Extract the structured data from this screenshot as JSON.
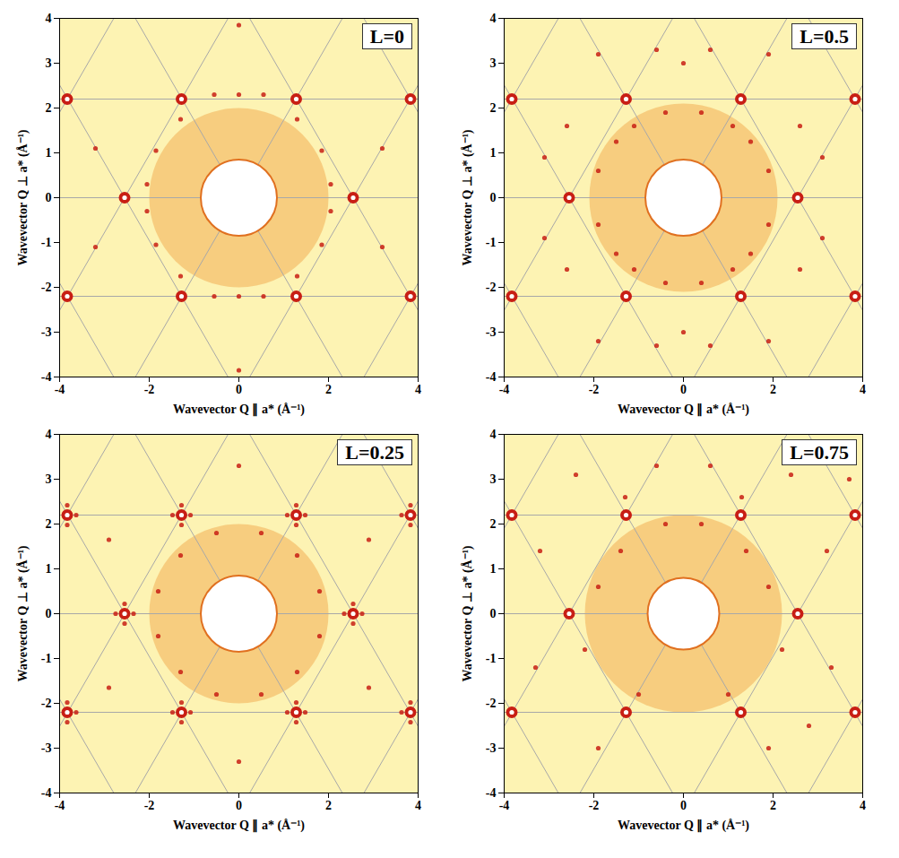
{
  "chart_data": [
    {
      "type": "scatter",
      "title": "L=0",
      "x_label": "Wavevector Q ∥ a* (Å⁻¹)",
      "y_label": "Wavevector Q ⊥ a* (Å⁻¹)",
      "xlim": [
        -4,
        4
      ],
      "ylim": [
        -4,
        4
      ],
      "xticks": [
        -4,
        -2,
        0,
        2,
        4
      ],
      "yticks": [
        -4,
        -3,
        -2,
        -1,
        0,
        1,
        2,
        3,
        4
      ],
      "color": "#c81e14",
      "diffuse_ring": {
        "inner_radius": 0.85,
        "outer_radius": 2.0
      },
      "lattice_lines": [
        [
          -4.4,
          -2.2,
          4.4,
          -2.2
        ],
        [
          -4.4,
          0,
          4.4,
          0
        ],
        [
          -4.4,
          2.2,
          4.4,
          2.2
        ],
        [
          -7.64,
          -4.4,
          -2.56,
          4.4
        ],
        [
          -5.09,
          -4.4,
          -0.01,
          4.4
        ],
        [
          -2.54,
          -4.4,
          2.54,
          4.4
        ],
        [
          0.01,
          -4.4,
          5.09,
          4.4
        ],
        [
          2.56,
          -4.4,
          7.64,
          4.4
        ],
        [
          -2.56,
          -4.4,
          -7.64,
          4.4
        ],
        [
          -0.01,
          -4.4,
          -5.09,
          4.4
        ],
        [
          2.54,
          -4.4,
          -2.54,
          4.4
        ],
        [
          5.09,
          -4.4,
          0.01,
          4.4
        ],
        [
          7.64,
          -4.4,
          2.56,
          4.4
        ]
      ],
      "bragg_peaks": [
        [
          2.55,
          0
        ],
        [
          -2.55,
          0
        ],
        [
          1.28,
          2.2
        ],
        [
          -1.28,
          2.2
        ],
        [
          1.28,
          -2.2
        ],
        [
          -1.28,
          -2.2
        ],
        [
          3.83,
          2.2
        ],
        [
          -3.83,
          2.2
        ],
        [
          3.83,
          -2.2
        ],
        [
          -3.83,
          -2.2
        ]
      ],
      "satellites": [
        [
          0,
          2.3
        ],
        [
          -0.55,
          2.3
        ],
        [
          0.55,
          2.3
        ],
        [
          0,
          -2.2
        ],
        [
          -0.55,
          -2.2
        ],
        [
          0.55,
          -2.2
        ],
        [
          -1.85,
          1.05
        ],
        [
          1.85,
          1.05
        ],
        [
          -1.85,
          -1.05
        ],
        [
          1.85,
          -1.05
        ],
        [
          -1.3,
          1.75
        ],
        [
          1.3,
          1.75
        ],
        [
          -1.3,
          -1.75
        ],
        [
          1.3,
          -1.75
        ],
        [
          -2.05,
          0.3
        ],
        [
          2.05,
          0.3
        ],
        [
          -2.05,
          -0.3
        ],
        [
          2.05,
          -0.3
        ],
        [
          0,
          3.85
        ],
        [
          0,
          -3.85
        ],
        [
          -3.2,
          1.1
        ],
        [
          3.2,
          1.1
        ],
        [
          -3.2,
          -1.1
        ],
        [
          3.2,
          -1.1
        ]
      ]
    },
    {
      "type": "scatter",
      "title": "L=0.5",
      "x_label": "Wavevector Q ∥ a* (Å⁻¹)",
      "y_label": "Wavevector Q ⊥ a* (Å⁻¹)",
      "xlim": [
        -4,
        4
      ],
      "ylim": [
        -4,
        4
      ],
      "xticks": [
        -4,
        -2,
        0,
        2,
        4
      ],
      "yticks": [
        -4,
        -3,
        -2,
        -1,
        0,
        1,
        2,
        3,
        4
      ],
      "color": "#c81e14",
      "diffuse_ring": {
        "inner_radius": 0.85,
        "outer_radius": 2.1
      },
      "lattice_lines": [
        [
          -4.4,
          -2.2,
          4.4,
          -2.2
        ],
        [
          -4.4,
          0,
          4.4,
          0
        ],
        [
          -4.4,
          2.2,
          4.4,
          2.2
        ],
        [
          -7.64,
          -4.4,
          -2.56,
          4.4
        ],
        [
          -5.09,
          -4.4,
          -0.01,
          4.4
        ],
        [
          -2.54,
          -4.4,
          2.54,
          4.4
        ],
        [
          0.01,
          -4.4,
          5.09,
          4.4
        ],
        [
          2.56,
          -4.4,
          7.64,
          4.4
        ],
        [
          -2.56,
          -4.4,
          -7.64,
          4.4
        ],
        [
          -0.01,
          -4.4,
          -5.09,
          4.4
        ],
        [
          2.54,
          -4.4,
          -2.54,
          4.4
        ],
        [
          5.09,
          -4.4,
          0.01,
          4.4
        ],
        [
          7.64,
          -4.4,
          2.56,
          4.4
        ]
      ],
      "bragg_peaks": [
        [
          2.55,
          0
        ],
        [
          -2.55,
          0
        ],
        [
          1.28,
          2.2
        ],
        [
          -1.28,
          2.2
        ],
        [
          1.28,
          -2.2
        ],
        [
          -1.28,
          -2.2
        ],
        [
          3.83,
          2.2
        ],
        [
          -3.83,
          2.2
        ],
        [
          3.83,
          -2.2
        ],
        [
          -3.83,
          -2.2
        ]
      ],
      "satellites": [
        [
          -0.4,
          1.9
        ],
        [
          0.4,
          1.9
        ],
        [
          -0.4,
          -1.9
        ],
        [
          0.4,
          -1.9
        ],
        [
          -1.5,
          1.25
        ],
        [
          1.5,
          1.25
        ],
        [
          -1.5,
          -1.25
        ],
        [
          1.5,
          -1.25
        ],
        [
          -1.9,
          0.6
        ],
        [
          1.9,
          0.6
        ],
        [
          -1.9,
          -0.6
        ],
        [
          1.9,
          -0.6
        ],
        [
          -1.1,
          1.6
        ],
        [
          1.1,
          1.6
        ],
        [
          -1.1,
          -1.6
        ],
        [
          1.1,
          -1.6
        ],
        [
          0,
          3.0
        ],
        [
          0,
          -3.0
        ],
        [
          -0.6,
          3.3
        ],
        [
          0.6,
          3.3
        ],
        [
          -0.6,
          -3.3
        ],
        [
          0.6,
          -3.3
        ],
        [
          -2.6,
          1.6
        ],
        [
          2.6,
          1.6
        ],
        [
          -2.6,
          -1.6
        ],
        [
          2.6,
          -1.6
        ],
        [
          -3.1,
          0.9
        ],
        [
          3.1,
          0.9
        ],
        [
          -3.1,
          -0.9
        ],
        [
          3.1,
          -0.9
        ],
        [
          -1.9,
          3.2
        ],
        [
          1.9,
          3.2
        ],
        [
          -1.9,
          -3.2
        ],
        [
          1.9,
          -3.2
        ]
      ]
    },
    {
      "type": "scatter",
      "title": "L=0.25",
      "x_label": "Wavevector Q ∥ a* (Å⁻¹)",
      "y_label": "Wavevector Q ⊥ a* (Å⁻¹)",
      "xlim": [
        -4,
        4
      ],
      "ylim": [
        -4,
        4
      ],
      "xticks": [
        -4,
        -2,
        0,
        2,
        4
      ],
      "yticks": [
        -4,
        -3,
        -2,
        -1,
        0,
        1,
        2,
        3,
        4
      ],
      "color": "#c81e14",
      "diffuse_ring": {
        "inner_radius": 0.85,
        "outer_radius": 2.0
      },
      "lattice_lines": [
        [
          -4.4,
          -2.2,
          4.4,
          -2.2
        ],
        [
          -4.4,
          0,
          4.4,
          0
        ],
        [
          -4.4,
          2.2,
          4.4,
          2.2
        ],
        [
          -7.64,
          -4.4,
          -2.56,
          4.4
        ],
        [
          -5.09,
          -4.4,
          -0.01,
          4.4
        ],
        [
          -2.54,
          -4.4,
          2.54,
          4.4
        ],
        [
          0.01,
          -4.4,
          5.09,
          4.4
        ],
        [
          2.56,
          -4.4,
          7.64,
          4.4
        ],
        [
          -2.56,
          -4.4,
          -7.64,
          4.4
        ],
        [
          -0.01,
          -4.4,
          -5.09,
          4.4
        ],
        [
          2.54,
          -4.4,
          -2.54,
          4.4
        ],
        [
          5.09,
          -4.4,
          0.01,
          4.4
        ],
        [
          7.64,
          -4.4,
          2.56,
          4.4
        ]
      ],
      "bragg_peaks": [
        [
          2.55,
          0
        ],
        [
          -2.55,
          0
        ],
        [
          1.28,
          2.2
        ],
        [
          -1.28,
          2.2
        ],
        [
          1.28,
          -2.2
        ],
        [
          -1.28,
          -2.2
        ],
        [
          3.83,
          2.2
        ],
        [
          -3.83,
          2.2
        ],
        [
          3.83,
          -2.2
        ],
        [
          -3.83,
          -2.2
        ]
      ],
      "satellites": [
        [
          2.55,
          0.22
        ],
        [
          2.55,
          -0.22
        ],
        [
          2.35,
          0
        ],
        [
          2.75,
          0
        ],
        [
          -2.55,
          0.22
        ],
        [
          -2.55,
          -0.22
        ],
        [
          -2.75,
          0
        ],
        [
          -2.35,
          0
        ],
        [
          1.28,
          2.42
        ],
        [
          1.28,
          1.98
        ],
        [
          1.08,
          2.2
        ],
        [
          1.48,
          2.2
        ],
        [
          -1.28,
          2.42
        ],
        [
          -1.28,
          1.98
        ],
        [
          -1.48,
          2.2
        ],
        [
          -1.08,
          2.2
        ],
        [
          1.28,
          -1.98
        ],
        [
          1.28,
          -2.42
        ],
        [
          1.08,
          -2.2
        ],
        [
          1.48,
          -2.2
        ],
        [
          -1.28,
          -1.98
        ],
        [
          -1.28,
          -2.42
        ],
        [
          -1.48,
          -2.2
        ],
        [
          -1.08,
          -2.2
        ],
        [
          3.83,
          2.42
        ],
        [
          3.83,
          1.98
        ],
        [
          3.63,
          2.2
        ],
        [
          -3.83,
          2.42
        ],
        [
          -3.83,
          1.98
        ],
        [
          -3.63,
          2.2
        ],
        [
          3.83,
          -1.98
        ],
        [
          3.83,
          -2.42
        ],
        [
          3.63,
          -2.2
        ],
        [
          -3.83,
          -1.98
        ],
        [
          -3.83,
          -2.42
        ],
        [
          -3.63,
          -2.2
        ],
        [
          -0.5,
          1.8
        ],
        [
          0.5,
          1.8
        ],
        [
          -0.5,
          -1.8
        ],
        [
          0.5,
          -1.8
        ],
        [
          -1.8,
          0.5
        ],
        [
          1.8,
          0.5
        ],
        [
          -1.8,
          -0.5
        ],
        [
          1.8,
          -0.5
        ],
        [
          -1.3,
          1.3
        ],
        [
          1.3,
          1.3
        ],
        [
          -1.3,
          -1.3
        ],
        [
          1.3,
          -1.3
        ],
        [
          0,
          3.3
        ],
        [
          0,
          -3.3
        ],
        [
          -2.9,
          1.65
        ],
        [
          2.9,
          1.65
        ],
        [
          -2.9,
          -1.65
        ],
        [
          2.9,
          -1.65
        ]
      ]
    },
    {
      "type": "scatter",
      "title": "L=0.75",
      "x_label": "Wavevector Q ∥ a* (Å⁻¹)",
      "y_label": "Wavevector Q ⊥ a* (Å⁻¹)",
      "xlim": [
        -4,
        4
      ],
      "ylim": [
        -4,
        4
      ],
      "xticks": [
        -4,
        -2,
        0,
        2,
        4
      ],
      "yticks": [
        -4,
        -3,
        -2,
        -1,
        0,
        1,
        2,
        3,
        4
      ],
      "color": "#c81e14",
      "diffuse_ring": {
        "inner_radius": 0.8,
        "outer_radius": 2.2
      },
      "lattice_lines": [
        [
          -4.4,
          -2.2,
          4.4,
          -2.2
        ],
        [
          -4.4,
          0,
          4.4,
          0
        ],
        [
          -4.4,
          2.2,
          4.4,
          2.2
        ],
        [
          -7.64,
          -4.4,
          -2.56,
          4.4
        ],
        [
          -5.09,
          -4.4,
          -0.01,
          4.4
        ],
        [
          -2.54,
          -4.4,
          2.54,
          4.4
        ],
        [
          0.01,
          -4.4,
          5.09,
          4.4
        ],
        [
          2.56,
          -4.4,
          7.64,
          4.4
        ],
        [
          -2.56,
          -4.4,
          -7.64,
          4.4
        ],
        [
          -0.01,
          -4.4,
          -5.09,
          4.4
        ],
        [
          2.54,
          -4.4,
          -2.54,
          4.4
        ],
        [
          5.09,
          -4.4,
          0.01,
          4.4
        ],
        [
          7.64,
          -4.4,
          2.56,
          4.4
        ]
      ],
      "bragg_peaks": [
        [
          2.55,
          0
        ],
        [
          -2.55,
          0
        ],
        [
          1.28,
          2.2
        ],
        [
          -1.28,
          2.2
        ],
        [
          1.28,
          -2.2
        ],
        [
          -1.28,
          -2.2
        ],
        [
          3.83,
          2.2
        ],
        [
          -3.83,
          2.2
        ],
        [
          3.83,
          -2.2
        ],
        [
          -3.83,
          -2.2
        ]
      ],
      "satellites": [
        [
          -0.4,
          2.0
        ],
        [
          0.4,
          2.0
        ],
        [
          1.4,
          1.4
        ],
        [
          -1.4,
          1.4
        ],
        [
          1.9,
          0.6
        ],
        [
          -1.9,
          0.6
        ],
        [
          2.2,
          -0.8
        ],
        [
          -2.2,
          -0.8
        ],
        [
          1.0,
          -1.8
        ],
        [
          -1.0,
          -1.8
        ],
        [
          0.6,
          3.3
        ],
        [
          -0.6,
          3.3
        ],
        [
          2.4,
          3.1
        ],
        [
          -2.4,
          3.1
        ],
        [
          3.2,
          1.4
        ],
        [
          -3.2,
          1.4
        ],
        [
          3.3,
          -1.2
        ],
        [
          -3.3,
          -1.2
        ],
        [
          1.9,
          -3.0
        ],
        [
          -1.9,
          -3.0
        ],
        [
          3.7,
          3.0
        ],
        [
          1.3,
          2.6
        ],
        [
          -1.3,
          2.6
        ],
        [
          2.8,
          -2.5
        ]
      ]
    }
  ]
}
